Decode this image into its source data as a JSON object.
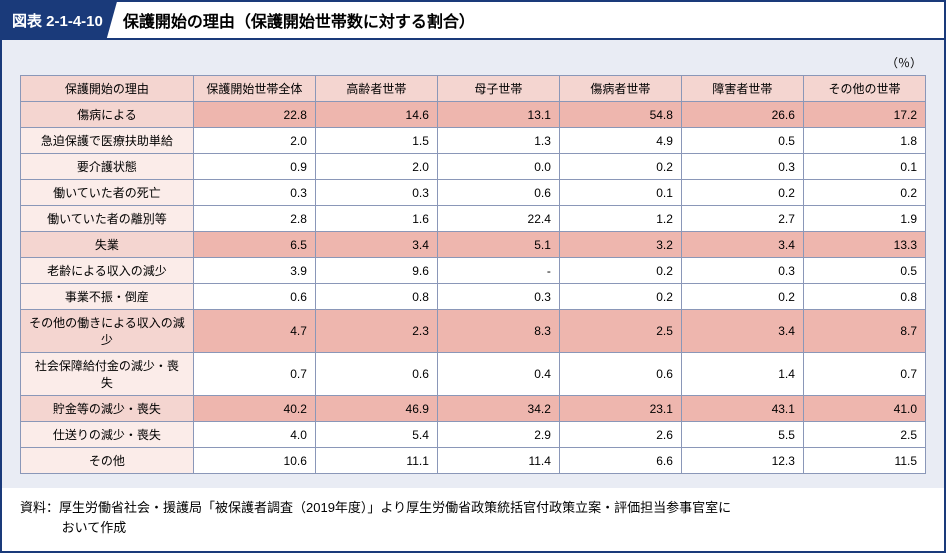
{
  "header": {
    "figure_number": "図表 2-1-4-10",
    "title": "保護開始の理由（保護開始世帯数に対する割合）"
  },
  "chart": {
    "unit_label": "（％）",
    "columns": [
      "保護開始の理由",
      "保護開始世帯全体",
      "高齢者世帯",
      "母子世帯",
      "傷病者世帯",
      "障害者世帯",
      "その他の世帯"
    ],
    "rows": [
      {
        "label": "傷病による",
        "values": [
          "22.8",
          "14.6",
          "13.1",
          "54.8",
          "26.6",
          "17.2"
        ],
        "highlight": true
      },
      {
        "label": "急迫保護で医療扶助単給",
        "values": [
          "2.0",
          "1.5",
          "1.3",
          "4.9",
          "0.5",
          "1.8"
        ],
        "highlight": false
      },
      {
        "label": "要介護状態",
        "values": [
          "0.9",
          "2.0",
          "0.0",
          "0.2",
          "0.3",
          "0.1"
        ],
        "highlight": false
      },
      {
        "label": "働いていた者の死亡",
        "values": [
          "0.3",
          "0.3",
          "0.6",
          "0.1",
          "0.2",
          "0.2"
        ],
        "highlight": false
      },
      {
        "label": "働いていた者の離別等",
        "values": [
          "2.8",
          "1.6",
          "22.4",
          "1.2",
          "2.7",
          "1.9"
        ],
        "highlight": false
      },
      {
        "label": "失業",
        "values": [
          "6.5",
          "3.4",
          "5.1",
          "3.2",
          "3.4",
          "13.3"
        ],
        "highlight": true
      },
      {
        "label": "老齢による収入の減少",
        "values": [
          "3.9",
          "9.6",
          "-",
          "0.2",
          "0.3",
          "0.5"
        ],
        "highlight": false
      },
      {
        "label": "事業不振・倒産",
        "values": [
          "0.6",
          "0.8",
          "0.3",
          "0.2",
          "0.2",
          "0.8"
        ],
        "highlight": false
      },
      {
        "label": "その他の働きによる収入の減少",
        "values": [
          "4.7",
          "2.3",
          "8.3",
          "2.5",
          "3.4",
          "8.7"
        ],
        "highlight": true
      },
      {
        "label": "社会保障給付金の減少・喪失",
        "values": [
          "0.7",
          "0.6",
          "0.4",
          "0.6",
          "1.4",
          "0.7"
        ],
        "highlight": false
      },
      {
        "label": "貯金等の減少・喪失",
        "values": [
          "40.2",
          "46.9",
          "34.2",
          "23.1",
          "43.1",
          "41.0"
        ],
        "highlight": true
      },
      {
        "label": "仕送りの減少・喪失",
        "values": [
          "4.0",
          "5.4",
          "2.9",
          "2.6",
          "5.5",
          "2.5"
        ],
        "highlight": false
      },
      {
        "label": "その他",
        "values": [
          "10.6",
          "11.1",
          "11.4",
          "6.6",
          "12.3",
          "11.5"
        ],
        "highlight": false
      }
    ]
  },
  "source": {
    "line1": "資料：厚生労働省社会・援護局「被保護者調査（2019年度）」より厚生労働省政策統括官付政策立案・評価担当参事官室に",
    "line2": "おいて作成"
  },
  "style": {
    "colors": {
      "frame": "#1a3a7a",
      "chart_bg": "#e9ecf4",
      "header_cell": "#f4d5d0",
      "rowlabel_cell": "#fbece9",
      "highlight_value": "#eeb6ae",
      "grid": "#8a97b8"
    }
  }
}
